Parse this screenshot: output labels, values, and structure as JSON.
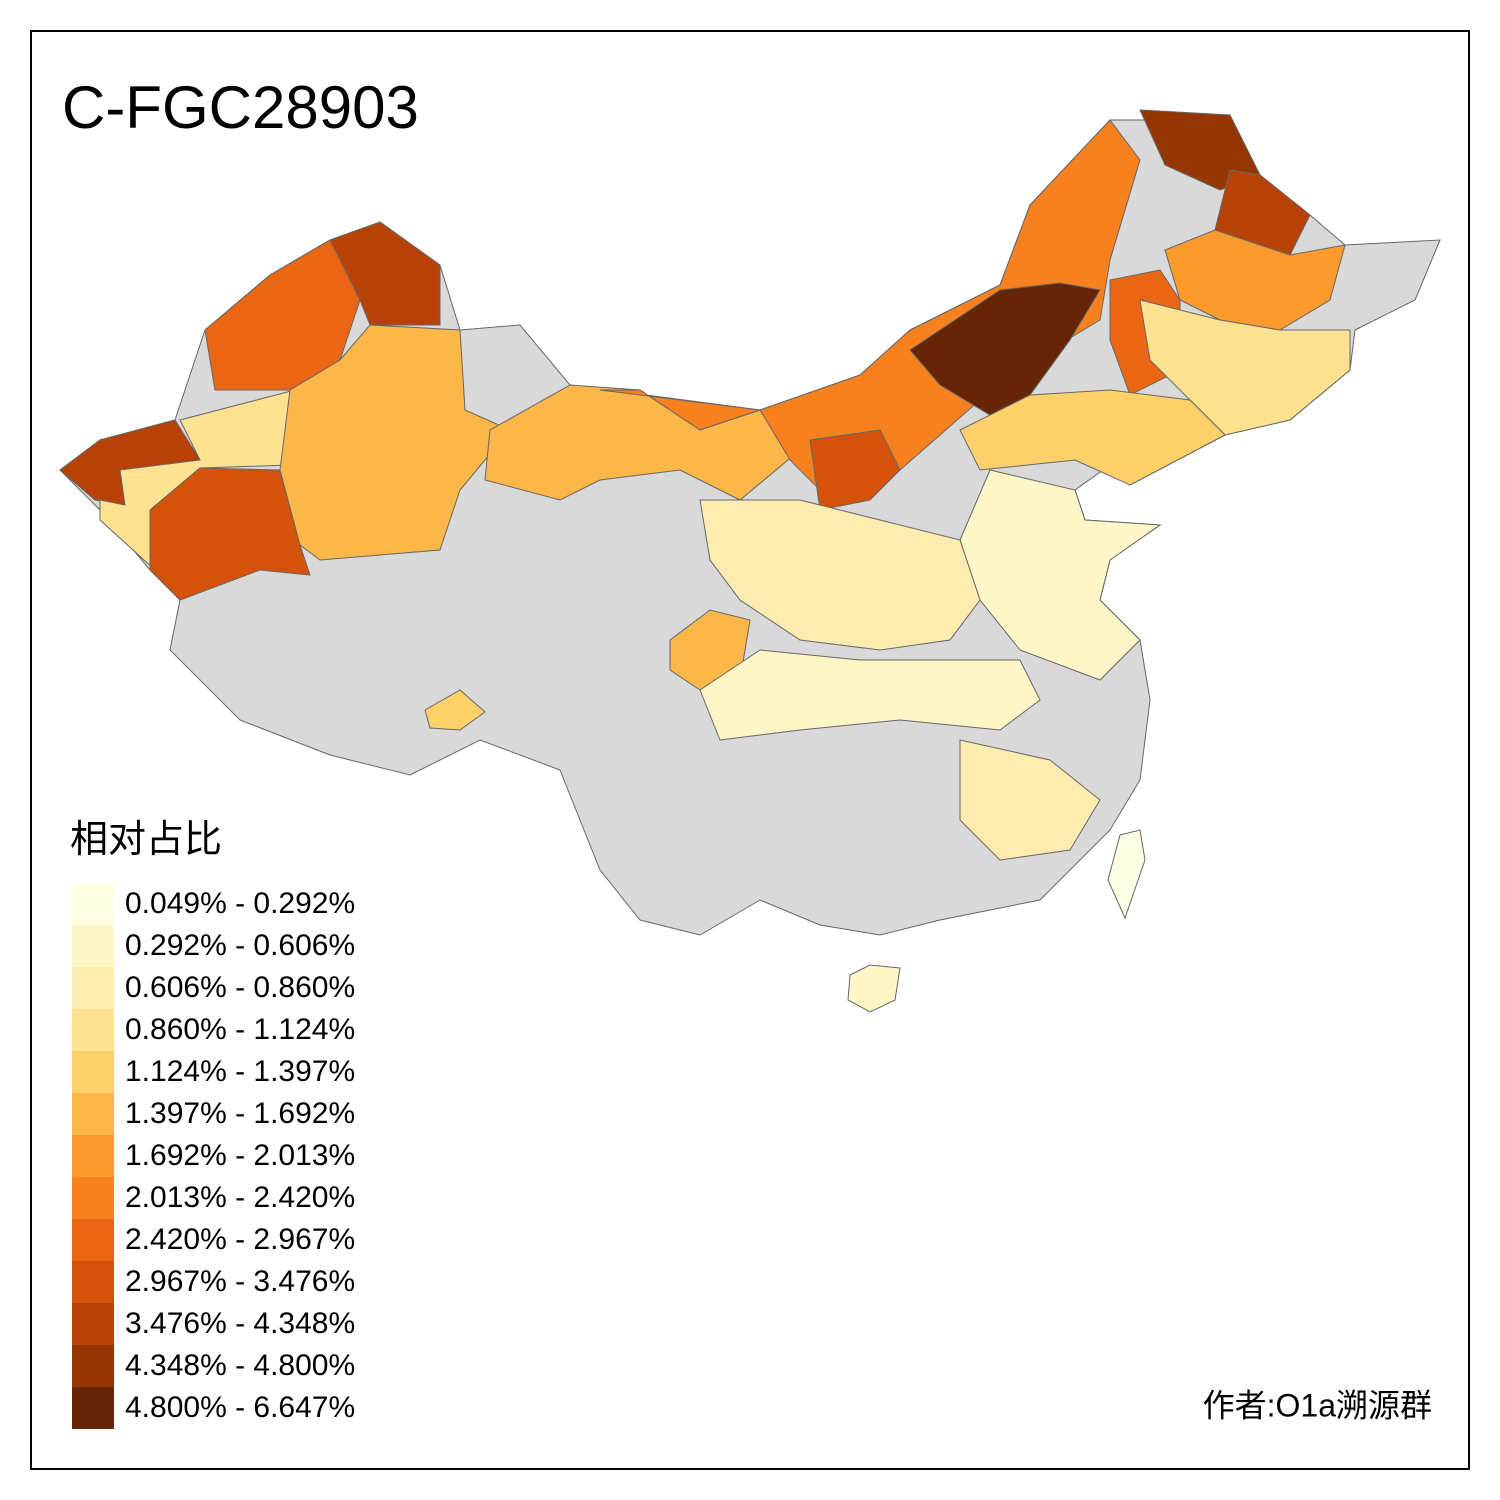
{
  "title": "C-FGC28903",
  "legend": {
    "title": "相对占比",
    "items": [
      {
        "label": "0.049% - 0.292%",
        "color": "#ffffe5"
      },
      {
        "label": "0.292% - 0.606%",
        "color": "#fff6c8"
      },
      {
        "label": "0.606% - 0.860%",
        "color": "#feebb0"
      },
      {
        "label": "0.860% - 1.124%",
        "color": "#fee292"
      },
      {
        "label": "1.124% - 1.397%",
        "color": "#fed06a"
      },
      {
        "label": "1.397% - 1.692%",
        "color": "#fdb648"
      },
      {
        "label": "1.692% - 2.013%",
        "color": "#fd9a2d"
      },
      {
        "label": "2.013% - 2.420%",
        "color": "#f6811e"
      },
      {
        "label": "2.420% - 2.967%",
        "color": "#ea6612"
      },
      {
        "label": "2.967% - 3.476%",
        "color": "#d4520a"
      },
      {
        "label": "3.476% - 4.348%",
        "color": "#b84205"
      },
      {
        "label": "4.348% - 4.800%",
        "color": "#963604"
      },
      {
        "label": "4.800% - 6.647%",
        "color": "#662506"
      }
    ]
  },
  "credit": "作者:O1a溯源群"
}
